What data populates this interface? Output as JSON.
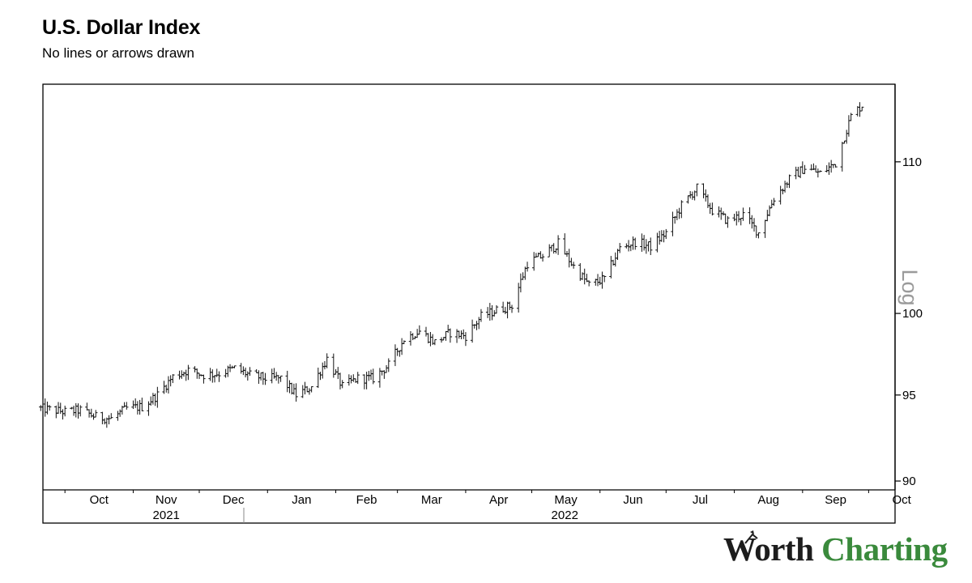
{
  "title": "U.S. Dollar Index",
  "subtitle": "No lines or arrows drawn",
  "brand": {
    "word1": "Worth",
    "word2": "Charting",
    "color_dark": "#1d1d1d",
    "color_green": "#3a8a3c"
  },
  "chart_data": {
    "type": "ohlc",
    "title": "U.S. Dollar Index",
    "scale_label": "Log",
    "y_scale": "log",
    "ylim": [
      89.5,
      115.5
    ],
    "y_ticks": [
      90,
      95,
      100,
      110
    ],
    "x_range": [
      "2021-09-21",
      "2022-10-13"
    ],
    "month_ticks": [
      {
        "label": "Oct",
        "date": "2021-10-01"
      },
      {
        "label": "Nov",
        "date": "2021-11-01"
      },
      {
        "label": "Dec",
        "date": "2021-12-01"
      },
      {
        "label": "Jan",
        "date": "2022-01-01"
      },
      {
        "label": "Feb",
        "date": "2022-02-01"
      },
      {
        "label": "Mar",
        "date": "2022-03-01"
      },
      {
        "label": "Apr",
        "date": "2022-04-01"
      },
      {
        "label": "May",
        "date": "2022-05-01"
      },
      {
        "label": "Jun",
        "date": "2022-06-01"
      },
      {
        "label": "Jul",
        "date": "2022-07-01"
      },
      {
        "label": "Aug",
        "date": "2022-08-01"
      },
      {
        "label": "Sep",
        "date": "2022-09-01"
      },
      {
        "label": "Oct",
        "date": "2022-10-01"
      }
    ],
    "year_labels": [
      {
        "label": "2021",
        "date": "2021-11-16"
      },
      {
        "label": "2022",
        "date": "2022-05-16"
      }
    ],
    "year_divider": "2022-01-01",
    "grid": false,
    "legend": "none",
    "series": [
      {
        "values": [
          [
            "2021-09-20",
            94.2
          ],
          [
            "2021-10-01",
            94.0
          ],
          [
            "2021-10-08",
            94.1
          ],
          [
            "2021-10-15",
            93.7
          ],
          [
            "2021-10-22",
            93.6
          ],
          [
            "2021-10-29",
            94.2
          ],
          [
            "2021-11-05",
            94.3
          ],
          [
            "2021-11-12",
            95.0
          ],
          [
            "2021-11-19",
            96.1
          ],
          [
            "2021-11-26",
            96.5
          ],
          [
            "2021-12-03",
            96.2
          ],
          [
            "2021-12-10",
            96.3
          ],
          [
            "2021-12-17",
            96.6
          ],
          [
            "2021-12-24",
            96.2
          ],
          [
            "2021-12-31",
            96.0
          ],
          [
            "2022-01-07",
            96.0
          ],
          [
            "2022-01-14",
            95.0
          ],
          [
            "2022-01-21",
            95.5
          ],
          [
            "2022-01-28",
            97.2
          ],
          [
            "2022-02-04",
            95.5
          ],
          [
            "2022-02-11",
            96.0
          ],
          [
            "2022-02-18",
            96.0
          ],
          [
            "2022-02-25",
            96.8
          ],
          [
            "2022-03-04",
            98.4
          ],
          [
            "2022-03-11",
            98.9
          ],
          [
            "2022-03-18",
            98.2
          ],
          [
            "2022-03-25",
            98.8
          ],
          [
            "2022-04-01",
            98.6
          ],
          [
            "2022-04-08",
            99.8
          ],
          [
            "2022-04-15",
            100.2
          ],
          [
            "2022-04-22",
            100.5
          ],
          [
            "2022-04-29",
            103.2
          ],
          [
            "2022-05-06",
            103.7
          ],
          [
            "2022-05-13",
            104.5
          ],
          [
            "2022-05-20",
            103.0
          ],
          [
            "2022-05-27",
            101.8
          ],
          [
            "2022-06-03",
            102.2
          ],
          [
            "2022-06-10",
            104.2
          ],
          [
            "2022-06-17",
            104.6
          ],
          [
            "2022-06-24",
            104.3
          ],
          [
            "2022-07-01",
            105.2
          ],
          [
            "2022-07-08",
            107.0
          ],
          [
            "2022-07-15",
            108.2
          ],
          [
            "2022-07-22",
            106.7
          ],
          [
            "2022-07-29",
            106.0
          ],
          [
            "2022-08-05",
            106.4
          ],
          [
            "2022-08-12",
            105.2
          ],
          [
            "2022-08-19",
            107.5
          ],
          [
            "2022-08-26",
            108.8
          ],
          [
            "2022-09-02",
            109.6
          ],
          [
            "2022-09-09",
            109.2
          ],
          [
            "2022-09-16",
            109.9
          ],
          [
            "2022-09-23",
            113.2
          ],
          [
            "2022-09-28",
            114.0
          ]
        ]
      }
    ]
  }
}
